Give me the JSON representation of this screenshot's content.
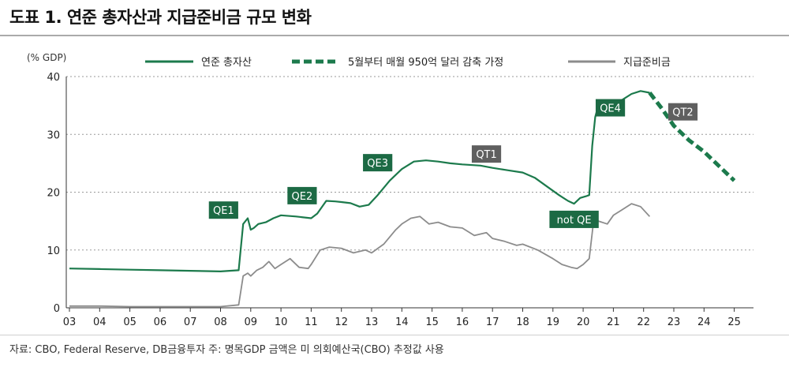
{
  "header": {
    "title": "도표 1. 연준 총자산과 지급준비금 규모 변화"
  },
  "footer": {
    "source": "자료: CBO, Federal Reserve, DB금융투자     주: 명목GDP 금액은 미 의회예산국(CBO) 추정값 사용"
  },
  "colors": {
    "assets": "#1c7a4c",
    "reserves": "#8c8c8c",
    "projection": "#1c7a4c",
    "tag_green": "#1c6a44",
    "tag_gray": "#5f5f5f"
  },
  "chart_data": {
    "type": "line",
    "ylabel": "(% GDP)",
    "ylim": [
      0,
      40
    ],
    "yticks": [
      0,
      10,
      20,
      30,
      40
    ],
    "xlim": [
      2003,
      2025.8
    ],
    "xticks": [
      "03",
      "04",
      "05",
      "06",
      "07",
      "08",
      "09",
      "10",
      "11",
      "12",
      "13",
      "14",
      "15",
      "16",
      "17",
      "18",
      "19",
      "20",
      "21",
      "22",
      "23",
      "24",
      "25"
    ],
    "grid": "horizontal dotted",
    "legend_position": "top",
    "series": [
      {
        "name": "연준 총자산",
        "style": "solid",
        "x": [
          2003,
          2004,
          2005,
          2006,
          2007,
          2008,
          2008.6,
          2008.75,
          2008.9,
          2009.0,
          2009.1,
          2009.25,
          2009.5,
          2009.75,
          2010.0,
          2010.5,
          2011.0,
          2011.2,
          2011.5,
          2011.8,
          2012.0,
          2012.3,
          2012.6,
          2012.9,
          2013.2,
          2013.6,
          2014.0,
          2014.4,
          2014.8,
          2015.2,
          2015.6,
          2016.0,
          2016.6,
          2017.0,
          2017.5,
          2018.0,
          2018.4,
          2018.8,
          2019.2,
          2019.5,
          2019.7,
          2019.9,
          2020.1,
          2020.2,
          2020.3,
          2020.4,
          2020.5,
          2020.6,
          2020.75,
          2021.0,
          2021.3,
          2021.6,
          2021.9,
          2022.2
        ],
        "values": [
          6.8,
          6.7,
          6.6,
          6.5,
          6.4,
          6.3,
          6.5,
          14.5,
          15.5,
          13.5,
          13.8,
          14.5,
          14.8,
          15.5,
          16.0,
          15.8,
          15.5,
          16.3,
          18.5,
          18.4,
          18.3,
          18.1,
          17.5,
          17.8,
          19.5,
          22.0,
          24.0,
          25.3,
          25.5,
          25.3,
          25.0,
          24.8,
          24.6,
          24.2,
          23.8,
          23.4,
          22.5,
          21.0,
          19.5,
          18.5,
          18.0,
          19.0,
          19.3,
          19.5,
          28.0,
          33.0,
          35.0,
          33.5,
          34.0,
          35.0,
          36.0,
          37.0,
          37.5,
          37.2
        ]
      },
      {
        "name": "5월부터 매월 950억 달러 감축 가정",
        "style": "dashed",
        "x": [
          2022.2,
          2022.6,
          2023.0,
          2023.5,
          2024.0,
          2024.5,
          2025.0
        ],
        "values": [
          37.2,
          34.5,
          31.5,
          29.0,
          27.0,
          24.5,
          22.0
        ]
      },
      {
        "name": "지급준비금",
        "style": "solid",
        "x": [
          2003,
          2004,
          2005,
          2006,
          2007,
          2008,
          2008.6,
          2008.75,
          2008.9,
          2009.0,
          2009.2,
          2009.4,
          2009.6,
          2009.8,
          2010.0,
          2010.3,
          2010.6,
          2010.9,
          2011.0,
          2011.3,
          2011.6,
          2012.0,
          2012.4,
          2012.8,
          2013.0,
          2013.4,
          2013.8,
          2014.0,
          2014.3,
          2014.6,
          2014.9,
          2015.2,
          2015.6,
          2016.0,
          2016.4,
          2016.8,
          2017.0,
          2017.4,
          2017.8,
          2018.0,
          2018.5,
          2019.0,
          2019.3,
          2019.6,
          2019.8,
          2020.0,
          2020.2,
          2020.35,
          2020.5,
          2020.8,
          2021.0,
          2021.3,
          2021.6,
          2021.9,
          2022.2
        ],
        "values": [
          0.3,
          0.3,
          0.2,
          0.2,
          0.2,
          0.2,
          0.5,
          5.5,
          6.0,
          5.5,
          6.5,
          7.0,
          8.0,
          6.8,
          7.5,
          8.5,
          7.0,
          6.8,
          7.5,
          10.0,
          10.5,
          10.3,
          9.5,
          10.0,
          9.5,
          11.0,
          13.5,
          14.5,
          15.5,
          15.8,
          14.5,
          14.8,
          14.0,
          13.8,
          12.5,
          13.0,
          12.0,
          11.5,
          10.8,
          11.0,
          10.0,
          8.5,
          7.5,
          7.0,
          6.8,
          7.5,
          8.5,
          15.2,
          15.0,
          14.5,
          16.0,
          17.0,
          18.0,
          17.5,
          15.8
        ]
      }
    ],
    "annotations": [
      {
        "text": "QE1",
        "style": "green",
        "x": 2008.1,
        "y": 16.9
      },
      {
        "text": "QE2",
        "style": "green",
        "x": 2010.7,
        "y": 19.4
      },
      {
        "text": "QE3",
        "style": "green",
        "x": 2013.2,
        "y": 25.1
      },
      {
        "text": "QT1",
        "style": "gray",
        "x": 2016.8,
        "y": 26.6
      },
      {
        "text": "not QE",
        "style": "green",
        "x": 2019.7,
        "y": 15.3
      },
      {
        "text": "QE4",
        "style": "green",
        "x": 2020.9,
        "y": 34.6
      },
      {
        "text": "QT2",
        "style": "gray",
        "x": 2023.3,
        "y": 33.9
      }
    ]
  }
}
